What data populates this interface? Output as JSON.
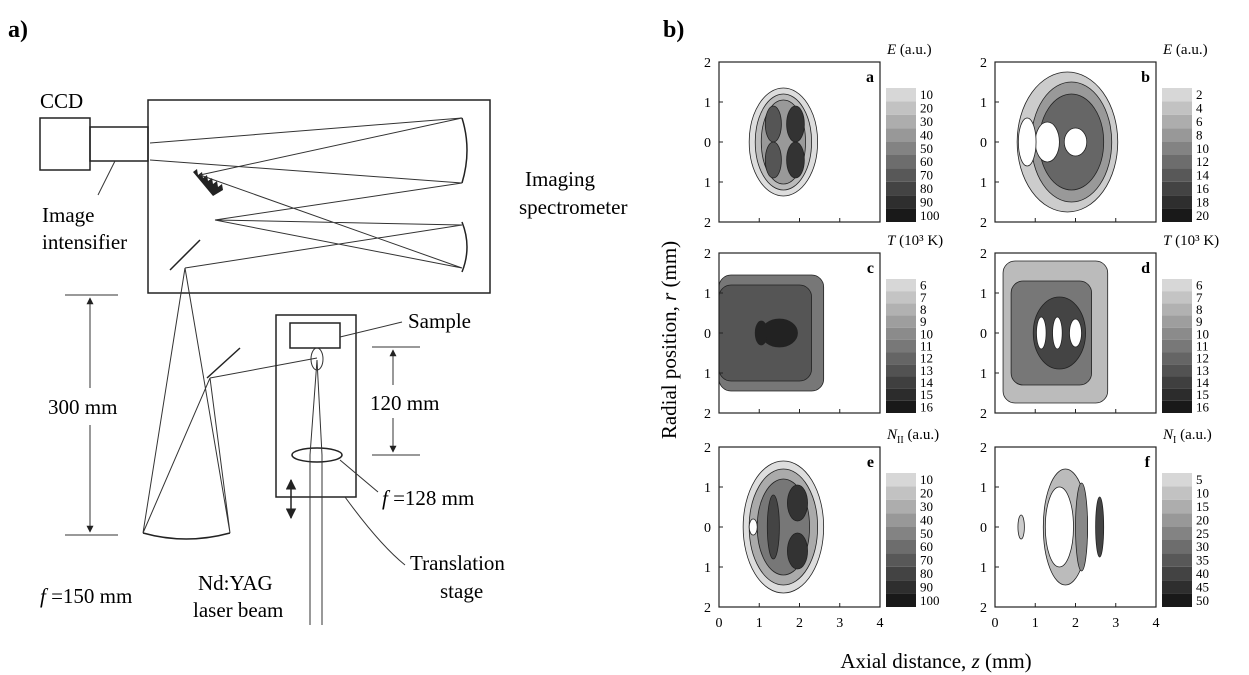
{
  "panel_a": {
    "label": "a)",
    "ccd": "CCD",
    "intensifier": [
      "Image",
      "intensifier"
    ],
    "spectrometer": [
      "Imaging",
      "spectrometer"
    ],
    "sample": "Sample",
    "dist_120": "120 mm",
    "dist_300": "300 mm",
    "lens_focal": [
      "f",
      " =128 mm"
    ],
    "mirror_focal": [
      "f",
      " =150 mm"
    ],
    "laser": [
      "Nd:YAG",
      "laser beam"
    ],
    "stage": [
      "Translation",
      "stage"
    ]
  },
  "panel_b": {
    "label": "b)",
    "y_axis_label": [
      "Radial position, ",
      "r",
      " (mm)"
    ],
    "x_axis_label": [
      "Axial distance, ",
      "z",
      " (mm)"
    ],
    "xticks": [
      0,
      1,
      2,
      3,
      4
    ],
    "yticks": [
      "2",
      "1",
      "0",
      "1",
      "2"
    ],
    "plots": [
      {
        "letter": "a",
        "symbol": "E",
        "unit": " (a.u.)",
        "levels": [
          10,
          20,
          30,
          40,
          50,
          60,
          70,
          80,
          90,
          100
        ]
      },
      {
        "letter": "b",
        "symbol": "E",
        "unit": " (a.u.)",
        "levels": [
          2,
          4,
          6,
          8,
          10,
          12,
          14,
          16,
          18,
          20
        ]
      },
      {
        "letter": "c",
        "symbol": "T",
        "unit": " (10³ K)",
        "levels": [
          6,
          7,
          8,
          9,
          10,
          11,
          12,
          13,
          14,
          15,
          16
        ]
      },
      {
        "letter": "d",
        "symbol": "T",
        "unit": " (10³ K)",
        "levels": [
          6,
          7,
          8,
          9,
          10,
          11,
          12,
          13,
          14,
          15,
          16
        ]
      },
      {
        "letter": "e",
        "symbol": "N",
        "subscript": "II",
        "unit": " (a.u.)",
        "levels": [
          10,
          20,
          30,
          40,
          50,
          60,
          70,
          80,
          90,
          100
        ]
      },
      {
        "letter": "f",
        "symbol": "N",
        "subscript": "I",
        "unit": " (a.u.)",
        "levels": [
          5,
          10,
          15,
          20,
          25,
          30,
          35,
          40,
          45,
          50
        ]
      }
    ]
  }
}
